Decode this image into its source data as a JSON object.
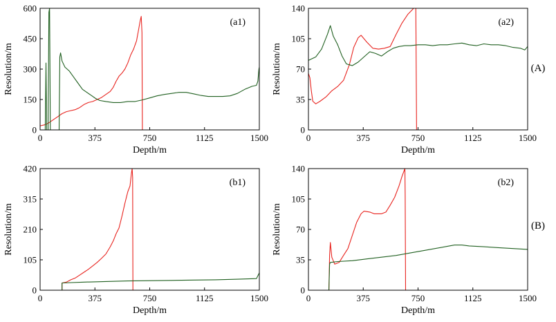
{
  "figure": {
    "group_labels": [
      "(A)",
      "(B)"
    ]
  },
  "colors": {
    "red_series": "#e8231e",
    "green_series": "#1f5f1f",
    "axis": "#000000"
  },
  "chart_data": [
    {
      "id": "a1",
      "type": "line",
      "panel_label": "(a1)",
      "xlabel": "Depth/m",
      "ylabel": "Resolution/m",
      "xlim": [
        0,
        1500
      ],
      "ylim": [
        0,
        600
      ],
      "xticks": [
        0,
        375,
        750,
        1125,
        1500
      ],
      "yticks": [
        0,
        150,
        300,
        450,
        600
      ],
      "xtick_labels": [
        "0",
        "375",
        "750",
        "1125",
        "1500"
      ],
      "ytick_labels": [
        "0",
        "150",
        "300",
        "450",
        "600"
      ],
      "series": [
        {
          "name": "red",
          "color": "#e8231e",
          "points": [
            [
              0,
              20
            ],
            [
              30,
              25
            ],
            [
              60,
              35
            ],
            [
              90,
              50
            ],
            [
              120,
              65
            ],
            [
              150,
              80
            ],
            [
              180,
              90
            ],
            [
              210,
              95
            ],
            [
              240,
              100
            ],
            [
              270,
              110
            ],
            [
              300,
              125
            ],
            [
              330,
              135
            ],
            [
              360,
              140
            ],
            [
              390,
              150
            ],
            [
              420,
              160
            ],
            [
              450,
              175
            ],
            [
              480,
              190
            ],
            [
              500,
              210
            ],
            [
              520,
              240
            ],
            [
              540,
              265
            ],
            [
              560,
              280
            ],
            [
              580,
              300
            ],
            [
              600,
              330
            ],
            [
              620,
              370
            ],
            [
              640,
              400
            ],
            [
              660,
              440
            ],
            [
              675,
              500
            ],
            [
              685,
              540
            ],
            [
              692,
              560
            ],
            [
              697,
              480
            ],
            [
              700,
              0
            ]
          ]
        },
        {
          "name": "green",
          "color": "#1f5f1f",
          "points": [
            [
              35,
              0
            ],
            [
              40,
              330
            ],
            [
              45,
              0
            ],
            [
              55,
              0
            ],
            [
              60,
              580
            ],
            [
              65,
              600
            ],
            [
              70,
              0
            ],
            [
              130,
              0
            ],
            [
              135,
              360
            ],
            [
              140,
              380
            ],
            [
              150,
              340
            ],
            [
              170,
              310
            ],
            [
              200,
              290
            ],
            [
              230,
              260
            ],
            [
              260,
              230
            ],
            [
              290,
              200
            ],
            [
              320,
              185
            ],
            [
              350,
              170
            ],
            [
              380,
              155
            ],
            [
              410,
              145
            ],
            [
              450,
              140
            ],
            [
              500,
              135
            ],
            [
              550,
              135
            ],
            [
              600,
              140
            ],
            [
              650,
              140
            ],
            [
              700,
              148
            ],
            [
              750,
              158
            ],
            [
              800,
              168
            ],
            [
              850,
              175
            ],
            [
              900,
              180
            ],
            [
              950,
              185
            ],
            [
              1000,
              185
            ],
            [
              1050,
              178
            ],
            [
              1100,
              170
            ],
            [
              1150,
              165
            ],
            [
              1200,
              165
            ],
            [
              1250,
              165
            ],
            [
              1300,
              168
            ],
            [
              1350,
              180
            ],
            [
              1400,
              200
            ],
            [
              1450,
              215
            ],
            [
              1480,
              220
            ],
            [
              1490,
              240
            ],
            [
              1497,
              300
            ],
            [
              1500,
              310
            ]
          ]
        }
      ]
    },
    {
      "id": "a2",
      "type": "line",
      "panel_label": "(a2)",
      "xlabel": "Depth/m",
      "ylabel": "Resolution/m",
      "xlim": [
        0,
        1500
      ],
      "ylim": [
        0,
        140
      ],
      "xticks": [
        0,
        375,
        750,
        1125,
        1500
      ],
      "yticks": [
        0,
        35,
        70,
        105,
        140
      ],
      "xtick_labels": [
        "0",
        "375",
        "750",
        "1125",
        "1500"
      ],
      "ytick_labels": [
        "0",
        "35",
        "70",
        "105",
        "140"
      ],
      "series": [
        {
          "name": "red",
          "color": "#e8231e",
          "points": [
            [
              0,
              65
            ],
            [
              10,
              60
            ],
            [
              20,
              45
            ],
            [
              30,
              33
            ],
            [
              50,
              30
            ],
            [
              80,
              33
            ],
            [
              120,
              38
            ],
            [
              160,
              45
            ],
            [
              200,
              50
            ],
            [
              240,
              57
            ],
            [
              280,
              75
            ],
            [
              310,
              95
            ],
            [
              340,
              106
            ],
            [
              360,
              109
            ],
            [
              400,
              101
            ],
            [
              440,
              94
            ],
            [
              480,
              93
            ],
            [
              520,
              94
            ],
            [
              560,
              96
            ],
            [
              600,
              110
            ],
            [
              640,
              123
            ],
            [
              680,
              133
            ],
            [
              720,
              140
            ],
            [
              735,
              140
            ],
            [
              740,
              0
            ]
          ]
        },
        {
          "name": "green",
          "color": "#1f5f1f",
          "points": [
            [
              0,
              80
            ],
            [
              50,
              84
            ],
            [
              90,
              93
            ],
            [
              130,
              110
            ],
            [
              150,
              120
            ],
            [
              170,
              108
            ],
            [
              200,
              98
            ],
            [
              230,
              85
            ],
            [
              260,
              76
            ],
            [
              300,
              74
            ],
            [
              340,
              78
            ],
            [
              380,
              84
            ],
            [
              420,
              90
            ],
            [
              460,
              88
            ],
            [
              500,
              85
            ],
            [
              540,
              90
            ],
            [
              580,
              94
            ],
            [
              620,
              96
            ],
            [
              660,
              97
            ],
            [
              700,
              97
            ],
            [
              750,
              98
            ],
            [
              800,
              98
            ],
            [
              850,
              97
            ],
            [
              900,
              98
            ],
            [
              950,
              98
            ],
            [
              1000,
              99
            ],
            [
              1050,
              100
            ],
            [
              1100,
              98
            ],
            [
              1150,
              97
            ],
            [
              1200,
              99
            ],
            [
              1250,
              98
            ],
            [
              1300,
              98
            ],
            [
              1350,
              97
            ],
            [
              1400,
              95
            ],
            [
              1450,
              94
            ],
            [
              1480,
              92
            ],
            [
              1500,
              96
            ]
          ]
        }
      ]
    },
    {
      "id": "b1",
      "type": "line",
      "panel_label": "(b1)",
      "xlabel": "Depth/m",
      "ylabel": "Resolution/m",
      "xlim": [
        0,
        1500
      ],
      "ylim": [
        0,
        420
      ],
      "xticks": [
        0,
        375,
        750,
        1125,
        1500
      ],
      "yticks": [
        0,
        105,
        210,
        315,
        420
      ],
      "xtick_labels": [
        "0",
        "375",
        "750",
        "1125",
        "1500"
      ],
      "ytick_labels": [
        "0",
        "105",
        "210",
        "315",
        "420"
      ],
      "series": [
        {
          "name": "red",
          "color": "#e8231e",
          "points": [
            [
              150,
              0
            ],
            [
              150,
              25
            ],
            [
              180,
              28
            ],
            [
              210,
              36
            ],
            [
              240,
              42
            ],
            [
              270,
              52
            ],
            [
              300,
              62
            ],
            [
              330,
              72
            ],
            [
              360,
              84
            ],
            [
              390,
              96
            ],
            [
              420,
              110
            ],
            [
              450,
              125
            ],
            [
              480,
              150
            ],
            [
              500,
              170
            ],
            [
              520,
              195
            ],
            [
              540,
              215
            ],
            [
              560,
              255
            ],
            [
              580,
              300
            ],
            [
              600,
              340
            ],
            [
              615,
              360
            ],
            [
              625,
              405
            ],
            [
              630,
              420
            ],
            [
              633,
              390
            ],
            [
              635,
              0
            ]
          ]
        },
        {
          "name": "green",
          "color": "#1f5f1f",
          "points": [
            [
              150,
              0
            ],
            [
              150,
              25
            ],
            [
              300,
              28
            ],
            [
              450,
              30
            ],
            [
              600,
              32
            ],
            [
              750,
              33
            ],
            [
              900,
              34
            ],
            [
              1050,
              35
            ],
            [
              1200,
              36
            ],
            [
              1350,
              38
            ],
            [
              1480,
              40
            ],
            [
              1500,
              60
            ]
          ]
        }
      ]
    },
    {
      "id": "b2",
      "type": "line",
      "panel_label": "(b2)",
      "xlabel": "Depth/m",
      "ylabel": "Resolution/m",
      "xlim": [
        0,
        1500
      ],
      "ylim": [
        0,
        140
      ],
      "xticks": [
        0,
        375,
        750,
        1125,
        1500
      ],
      "yticks": [
        0,
        35,
        70,
        105,
        140
      ],
      "xtick_labels": [
        "0",
        "375",
        "750",
        "1125",
        "1500"
      ],
      "ytick_labels": [
        "0",
        "35",
        "70",
        "105",
        "140"
      ],
      "series": [
        {
          "name": "red",
          "color": "#e8231e",
          "points": [
            [
              140,
              0
            ],
            [
              145,
              40
            ],
            [
              150,
              55
            ],
            [
              160,
              38
            ],
            [
              180,
              30
            ],
            [
              210,
              32
            ],
            [
              240,
              40
            ],
            [
              270,
              48
            ],
            [
              300,
              63
            ],
            [
              330,
              78
            ],
            [
              360,
              88
            ],
            [
              380,
              91
            ],
            [
              420,
              90
            ],
            [
              450,
              88
            ],
            [
              500,
              88
            ],
            [
              530,
              90
            ],
            [
              560,
              98
            ],
            [
              590,
              107
            ],
            [
              620,
              120
            ],
            [
              640,
              131
            ],
            [
              660,
              140
            ],
            [
              662,
              110
            ],
            [
              665,
              0
            ]
          ]
        },
        {
          "name": "green",
          "color": "#1f5f1f",
          "points": [
            [
              140,
              0
            ],
            [
              145,
              30
            ],
            [
              150,
              32
            ],
            [
              200,
              33
            ],
            [
              300,
              34
            ],
            [
              400,
              36
            ],
            [
              500,
              38
            ],
            [
              600,
              40
            ],
            [
              700,
              43
            ],
            [
              800,
              46
            ],
            [
              900,
              49
            ],
            [
              1000,
              52
            ],
            [
              1050,
              52
            ],
            [
              1100,
              51
            ],
            [
              1200,
              50
            ],
            [
              1300,
              49
            ],
            [
              1400,
              48
            ],
            [
              1500,
              47
            ]
          ]
        }
      ]
    }
  ]
}
